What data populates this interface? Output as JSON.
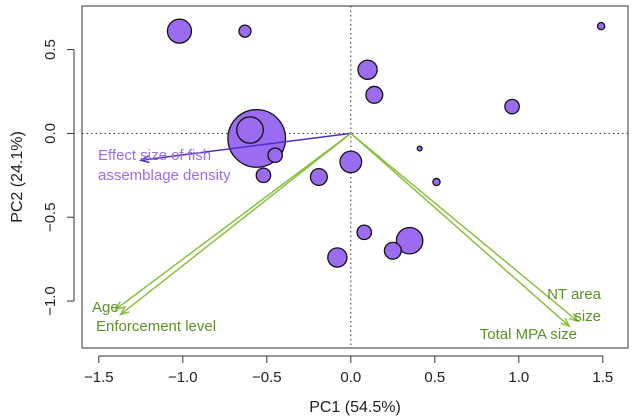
{
  "chart_data": {
    "type": "scatter",
    "subtype": "pca-biplot",
    "xlabel": "PC1 (54.5%)",
    "ylabel": "PC2 (24.1%)",
    "xlim": [
      -1.6,
      1.65
    ],
    "ylim": [
      -1.28,
      0.76
    ],
    "xticks": [
      -1.5,
      -1.0,
      -0.5,
      0.0,
      0.5,
      1.0,
      1.5
    ],
    "xtick_labels": [
      "−1.5",
      "−1.0",
      "−0.5",
      "0.0",
      "0.5",
      "1.0",
      "1.5"
    ],
    "yticks": [
      -1.0,
      -0.5,
      0.0,
      0.5
    ],
    "ytick_labels": [
      "−1.0",
      "−0.5",
      "0.0",
      "0.5"
    ],
    "grid": false,
    "reference_lines": {
      "x": 0,
      "y": 0,
      "style": "dotted"
    },
    "colors": {
      "points": "#9b6cf0",
      "point_edge": "#111111",
      "response_vector": "#4f2fc8",
      "response_label": "#9b6cf0",
      "predictor_vectors": "#88c040",
      "predictor_labels": "#5e8f2a"
    },
    "points": [
      {
        "x": -1.02,
        "y": 0.61,
        "size": 10
      },
      {
        "x": -0.63,
        "y": 0.61,
        "size": 5
      },
      {
        "x": 1.49,
        "y": 0.64,
        "size": 3
      },
      {
        "x": 0.1,
        "y": 0.38,
        "size": 8
      },
      {
        "x": 0.14,
        "y": 0.23,
        "size": 7
      },
      {
        "x": 0.96,
        "y": 0.16,
        "size": 6
      },
      {
        "x": -0.56,
        "y": -0.03,
        "size": 24
      },
      {
        "x": -0.6,
        "y": 0.02,
        "size": 11
      },
      {
        "x": -0.45,
        "y": -0.13,
        "size": 6
      },
      {
        "x": 0.0,
        "y": -0.17,
        "size": 9
      },
      {
        "x": 0.41,
        "y": -0.09,
        "size": 2
      },
      {
        "x": 0.51,
        "y": -0.29,
        "size": 3
      },
      {
        "x": -0.52,
        "y": -0.25,
        "size": 6
      },
      {
        "x": -0.19,
        "y": -0.26,
        "size": 7
      },
      {
        "x": 0.08,
        "y": -0.59,
        "size": 6
      },
      {
        "x": 0.35,
        "y": -0.64,
        "size": 11
      },
      {
        "x": 0.25,
        "y": -0.7,
        "size": 7
      },
      {
        "x": -0.08,
        "y": -0.74,
        "size": 8
      }
    ],
    "vectors": [
      {
        "label": [
          "Effect size of fish",
          "assemblage density"
        ],
        "x": -1.25,
        "y": -0.16,
        "group": "response"
      },
      {
        "label": [
          "Age"
        ],
        "x": -1.4,
        "y": -1.05,
        "group": "predictor"
      },
      {
        "label": [
          "Enforcement level"
        ],
        "x": -1.37,
        "y": -1.08,
        "group": "predictor"
      },
      {
        "label": [
          "NT area",
          "size"
        ],
        "x": 1.35,
        "y": -1.12,
        "group": "predictor"
      },
      {
        "label": [
          "Total MPA size"
        ],
        "x": 1.3,
        "y": -1.15,
        "group": "predictor"
      }
    ]
  }
}
